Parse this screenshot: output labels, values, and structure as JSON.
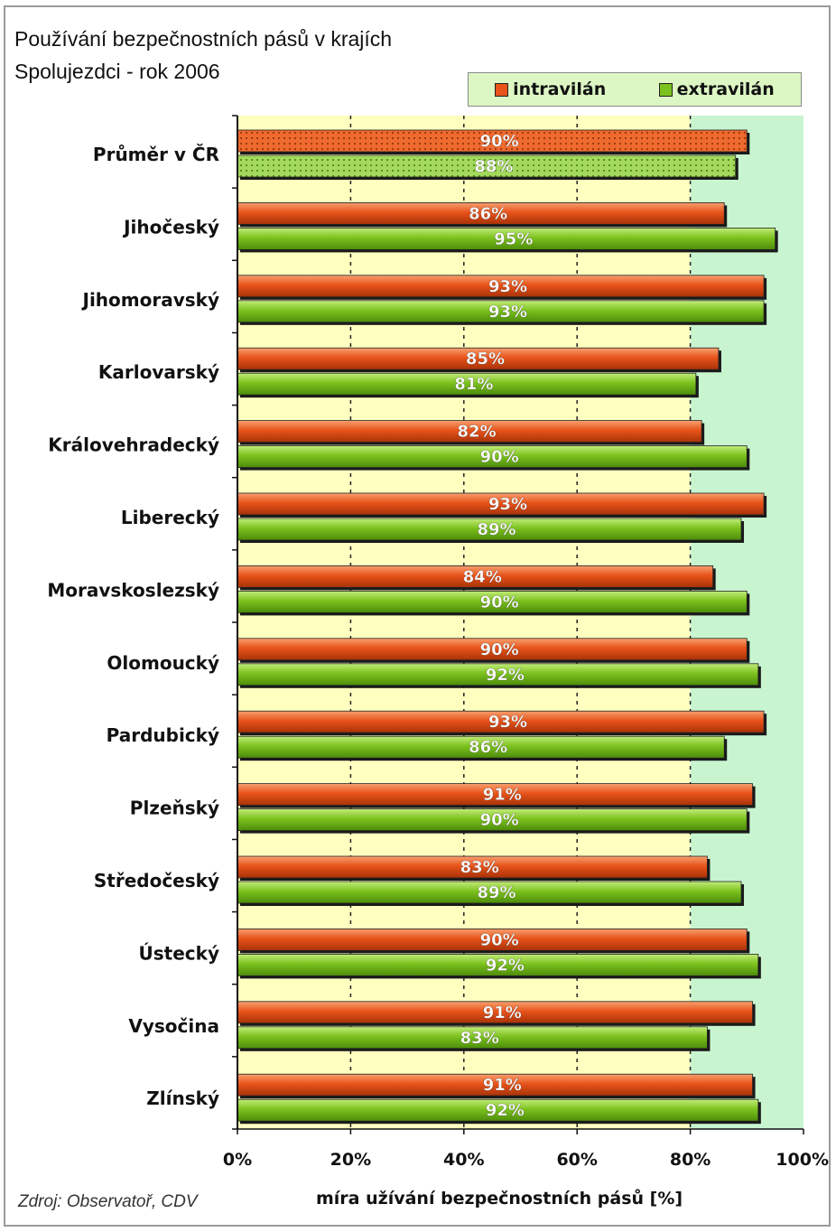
{
  "chart_data": {
    "type": "bar",
    "orientation": "horizontal",
    "title": "Používání bezpečnostních pásů v krajích",
    "subtitle": "Spolujezdci - rok 2006",
    "xlabel": "míra užívání bezpečnostních pásů [%]",
    "ylabel": "",
    "xlim": [
      0,
      100
    ],
    "x_ticks": [
      "0%",
      "20%",
      "40%",
      "60%",
      "80%",
      "100%"
    ],
    "grid": true,
    "legend_position": "top-right",
    "source": "Zdroj: Observatoř, CDV",
    "categories": [
      "Průměr v ČR",
      "Jihočeský",
      "Jihomoravský",
      "Karlovarský",
      "Královehradecký",
      "Liberecký",
      "Moravskoslezský",
      "Olomoucký",
      "Pardubický",
      "Plzeňský",
      "Středočeský",
      "Ústecký",
      "Vysočina",
      "Zlínský"
    ],
    "series": [
      {
        "name": "intravilán",
        "color": "#e8531a",
        "values": [
          90,
          86,
          93,
          85,
          82,
          93,
          84,
          90,
          93,
          91,
          83,
          90,
          91,
          91
        ],
        "labels": [
          "90%",
          "86%",
          "93%",
          "85%",
          "82%",
          "93%",
          "84%",
          "90%",
          "93%",
          "91%",
          "83%",
          "90%",
          "91%",
          "91%"
        ]
      },
      {
        "name": "extravilán",
        "color": "#7cc21e",
        "values": [
          88,
          95,
          93,
          81,
          90,
          89,
          90,
          92,
          86,
          90,
          89,
          92,
          83,
          92
        ],
        "labels": [
          "88%",
          "95%",
          "93%",
          "81%",
          "90%",
          "89%",
          "90%",
          "92%",
          "86%",
          "90%",
          "89%",
          "92%",
          "83%",
          "92%"
        ]
      }
    ],
    "background_zones": [
      {
        "from": 0,
        "to": 80,
        "color": "#ffffc0"
      },
      {
        "from": 80,
        "to": 100,
        "color": "#c8f5d0"
      }
    ]
  }
}
